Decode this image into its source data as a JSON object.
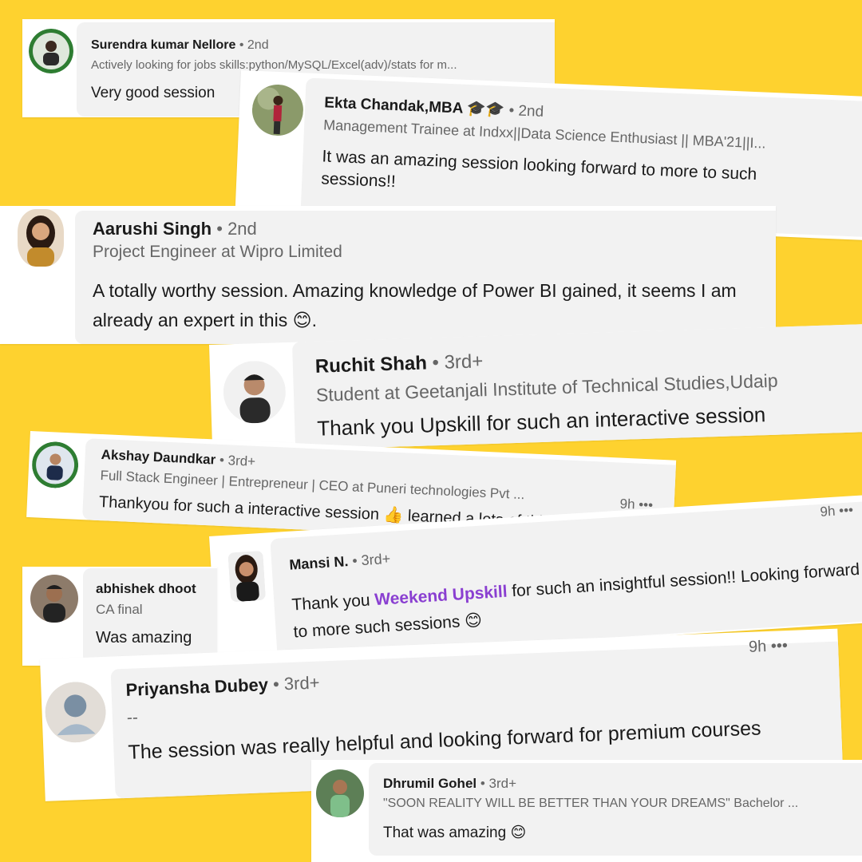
{
  "comments": [
    {
      "name": "Surendra kumar Nellore",
      "degree": "• 2nd",
      "headline": "Actively looking for jobs skills:python/MySQL/Excel(adv)/stats for m...",
      "comment": "Very good session"
    },
    {
      "name": "Ekta Chandak,MBA 🎓🎓",
      "degree": "• 2nd",
      "headline": "Management Trainee at Indxx||Data Science Enthusiast || MBA'21||I...",
      "comment": "It was an amazing session looking forward to more to such sessions!!"
    },
    {
      "name": "Aarushi Singh",
      "degree": "• 2nd",
      "headline": "Project Engineer at Wipro Limited",
      "comment": "A totally worthy session. Amazing knowledge of Power BI gained, it seems I am already an expert in this 😊."
    },
    {
      "name": "Ruchit Shah",
      "degree": "• 3rd+",
      "headline": "Student at Geetanjali Institute of Technical Studies,Udaip",
      "comment": "Thank you Upskill for such an interactive session"
    },
    {
      "name": "Akshay Daundkar",
      "degree": "• 3rd+",
      "headline": "Full Stack Engineer | Entrepreneur | CEO at Puneri technologies Pvt ...",
      "comment": "Thankyou for such a interactive session 👍 learned a lots of things",
      "time": "9h •••"
    },
    {
      "name": "Mansi N.",
      "degree": "• 3rd+",
      "comment_prefix": "Thank you ",
      "comment_highlight": "Weekend Upskill",
      "comment_suffix": " for such an insightful session!! Looking forward to more such sessions 😊",
      "time": "9h •••"
    },
    {
      "name": "abhishek dhoot",
      "headline": "CA final",
      "comment": "Was amazing"
    },
    {
      "name": "Priyansha Dubey",
      "degree": "• 3rd+",
      "headline": "--",
      "comment": "The session was really helpful and looking forward for premium courses",
      "time": "9h •••"
    },
    {
      "name": "Dhrumil Gohel",
      "degree": "• 3rd+",
      "headline": "\"SOON REALITY WILL BE BETTER THAN YOUR DREAMS\" Bachelor ...",
      "comment": "That was amazing 😊"
    }
  ],
  "colors": {
    "background": "#FED22F",
    "bubble": "#f2f2f2",
    "highlight": "#8a3fd1"
  }
}
